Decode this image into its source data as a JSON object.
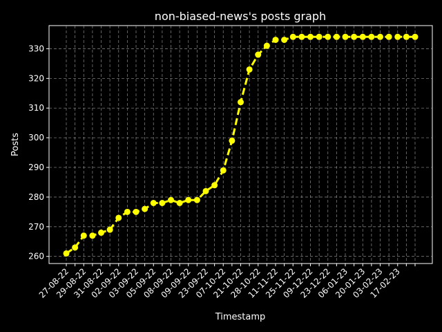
{
  "chart_data": {
    "type": "line",
    "title": "non-biased-news's posts graph",
    "xlabel": "Timestamp",
    "ylabel": "Posts",
    "ylim": [
      257.6,
      337.8
    ],
    "yticks": [
      260,
      270,
      280,
      290,
      300,
      310,
      320,
      330
    ],
    "grid": true,
    "line_style": "dashed",
    "marker": "circle",
    "colors": {
      "background": "#000000",
      "series": "#ffff00",
      "grid": "#b0b0b0",
      "text": "#ffffff"
    },
    "x_tick_labels": [
      "27-08-22",
      "29-08-22",
      "31-08-22",
      "02-09-22",
      "03-09-22",
      "05-09-22",
      "08-09-22",
      "09-09-22",
      "23-09-22",
      "07-10-22",
      "21-10-22",
      "28-10-22",
      "11-11-22",
      "25-11-22",
      "09-12-22",
      "23-12-22",
      "06-01-23",
      "20-01-23",
      "03-02-23",
      "17-02-23"
    ],
    "series": [
      {
        "values": [
          261,
          263,
          267,
          267,
          268,
          269,
          273,
          275,
          275,
          276,
          278,
          278,
          279,
          278,
          279,
          279,
          282,
          284,
          289,
          299,
          312,
          323,
          328,
          331,
          333,
          333,
          334,
          334,
          334,
          334,
          334,
          334,
          334,
          334,
          334,
          334,
          334,
          334,
          334,
          334,
          334
        ]
      }
    ]
  }
}
